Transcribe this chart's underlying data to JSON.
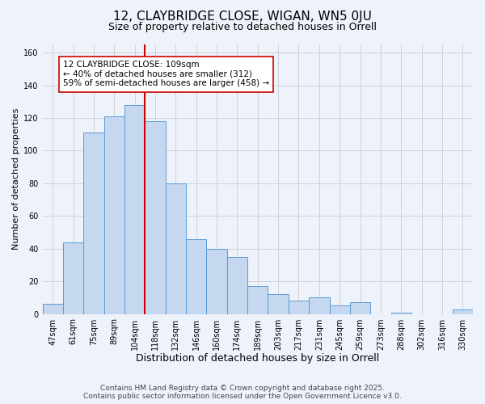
{
  "title": "12, CLAYBRIDGE CLOSE, WIGAN, WN5 0JU",
  "subtitle": "Size of property relative to detached houses in Orrell",
  "xlabel": "Distribution of detached houses by size in Orrell",
  "ylabel": "Number of detached properties",
  "categories": [
    "47sqm",
    "61sqm",
    "75sqm",
    "89sqm",
    "104sqm",
    "118sqm",
    "132sqm",
    "146sqm",
    "160sqm",
    "174sqm",
    "189sqm",
    "203sqm",
    "217sqm",
    "231sqm",
    "245sqm",
    "259sqm",
    "273sqm",
    "288sqm",
    "302sqm",
    "316sqm",
    "330sqm"
  ],
  "values": [
    6,
    44,
    111,
    121,
    128,
    118,
    80,
    46,
    40,
    35,
    17,
    12,
    8,
    10,
    5,
    7,
    0,
    1,
    0,
    0,
    3
  ],
  "bar_color": "#c5d8f0",
  "bar_edge_color": "#5b9bd5",
  "vline_x_index": 4,
  "vline_color": "#cc0000",
  "annotation_text": "12 CLAYBRIDGE CLOSE: 109sqm\n← 40% of detached houses are smaller (312)\n59% of semi-detached houses are larger (458) →",
  "annotation_box_color": "#ffffff",
  "annotation_box_edge_color": "#cc0000",
  "ylim": [
    0,
    165
  ],
  "yticks": [
    0,
    20,
    40,
    60,
    80,
    100,
    120,
    140,
    160
  ],
  "grid_color": "#cccccc",
  "background_color": "#eef2fa",
  "footer_line1": "Contains HM Land Registry data © Crown copyright and database right 2025.",
  "footer_line2": "Contains public sector information licensed under the Open Government Licence v3.0.",
  "title_fontsize": 11,
  "subtitle_fontsize": 9,
  "xlabel_fontsize": 9,
  "ylabel_fontsize": 8,
  "tick_fontsize": 7,
  "annotation_fontsize": 7.5,
  "footer_fontsize": 6.5
}
